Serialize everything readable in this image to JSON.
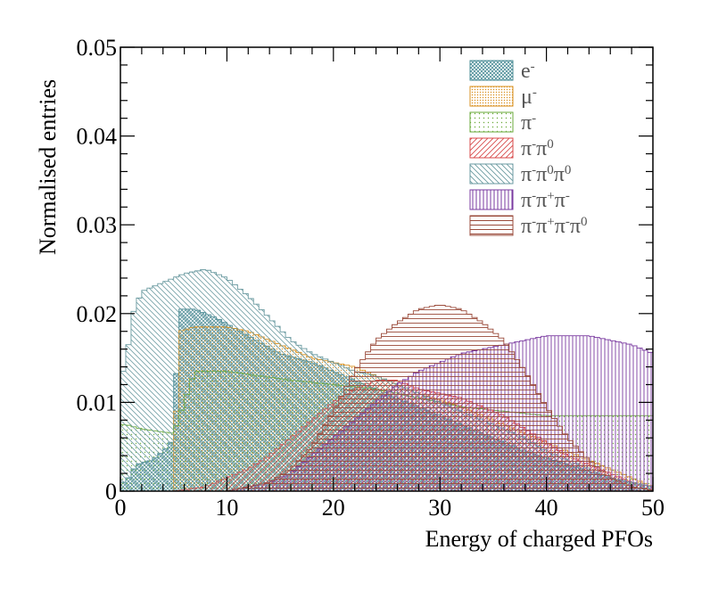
{
  "chart_data": {
    "type": "histogram",
    "title": "",
    "xlabel": "Energy of charged PFOs",
    "ylabel": "Normalised entries",
    "xlim": [
      0,
      50
    ],
    "ylim": [
      0,
      0.05
    ],
    "x_ticks": [
      "0",
      "10",
      "20",
      "30",
      "40",
      "50"
    ],
    "y_ticks": [
      "0",
      "0.01",
      "0.02",
      "0.03",
      "0.04",
      "0.05"
    ],
    "grid": false,
    "legend_position": "top-right",
    "bin_width": 0.5,
    "series": [
      {
        "name": "e-",
        "color": "#4a8c96",
        "pattern": "crosshatch-dense",
        "points": [
          [
            0.5,
            0.001
          ],
          [
            1.5,
            0.003
          ],
          [
            3,
            0.0035
          ],
          [
            4.5,
            0.005
          ],
          [
            5,
            0.006
          ],
          [
            5.5,
            0.0205
          ],
          [
            7,
            0.0205
          ],
          [
            9,
            0.0195
          ],
          [
            12,
            0.0175
          ],
          [
            15,
            0.0155
          ],
          [
            18,
            0.0145
          ],
          [
            22,
            0.0125
          ],
          [
            26,
            0.0105
          ],
          [
            30,
            0.0085
          ],
          [
            34,
            0.0065
          ],
          [
            38,
            0.0045
          ],
          [
            42,
            0.003
          ],
          [
            46,
            0.0015
          ],
          [
            50,
            0.0005
          ]
        ]
      },
      {
        "name": "μ-",
        "color": "#d9901f",
        "pattern": "dots",
        "points": [
          [
            0.5,
            0.0
          ],
          [
            5,
            0.0
          ],
          [
            5.5,
            0.018
          ],
          [
            7,
            0.0185
          ],
          [
            10,
            0.0185
          ],
          [
            12,
            0.018
          ],
          [
            15,
            0.0165
          ],
          [
            18,
            0.015
          ],
          [
            20,
            0.0145
          ],
          [
            22,
            0.014
          ],
          [
            25,
            0.0125
          ],
          [
            28,
            0.011
          ],
          [
            32,
            0.0095
          ],
          [
            36,
            0.0075
          ],
          [
            40,
            0.0055
          ],
          [
            44,
            0.0035
          ],
          [
            48,
            0.0015
          ],
          [
            50,
            0.0005
          ]
        ]
      },
      {
        "name": "π-",
        "color": "#6aaa3a",
        "pattern": "dots-sparse",
        "points": [
          [
            0.5,
            0.0075
          ],
          [
            2,
            0.007
          ],
          [
            5,
            0.0065
          ],
          [
            7,
            0.0135
          ],
          [
            10,
            0.0135
          ],
          [
            13,
            0.013
          ],
          [
            16,
            0.0125
          ],
          [
            20,
            0.012
          ],
          [
            24,
            0.0115
          ],
          [
            28,
            0.0105
          ],
          [
            32,
            0.0095
          ],
          [
            36,
            0.009
          ],
          [
            40,
            0.0085
          ],
          [
            44,
            0.0085
          ],
          [
            47,
            0.0085
          ],
          [
            50,
            0.0085
          ]
        ]
      },
      {
        "name": "π-π0",
        "color": "#d84a4a",
        "pattern": "diagonal-right",
        "points": [
          [
            0.5,
            0.0
          ],
          [
            5,
            0.0
          ],
          [
            8,
            0.0005
          ],
          [
            10,
            0.0015
          ],
          [
            12,
            0.0025
          ],
          [
            14,
            0.004
          ],
          [
            16,
            0.006
          ],
          [
            18,
            0.008
          ],
          [
            20,
            0.01
          ],
          [
            22,
            0.0115
          ],
          [
            24,
            0.0125
          ],
          [
            26,
            0.0125
          ],
          [
            28,
            0.0115
          ],
          [
            30,
            0.011
          ],
          [
            32,
            0.0105
          ],
          [
            34,
            0.0095
          ],
          [
            36,
            0.0085
          ],
          [
            38,
            0.007
          ],
          [
            40,
            0.0055
          ],
          [
            42,
            0.004
          ],
          [
            44,
            0.003
          ],
          [
            46,
            0.002
          ],
          [
            48,
            0.001
          ],
          [
            50,
            0.0005
          ]
        ]
      },
      {
        "name": "π-π0π0",
        "color": "#6a9aa0",
        "pattern": "diagonal-left",
        "points": [
          [
            0.5,
            0.0135
          ],
          [
            1,
            0.0195
          ],
          [
            2,
            0.0225
          ],
          [
            4,
            0.0235
          ],
          [
            6,
            0.0245
          ],
          [
            8,
            0.025
          ],
          [
            10,
            0.024
          ],
          [
            12,
            0.022
          ],
          [
            14,
            0.0195
          ],
          [
            16,
            0.017
          ],
          [
            18,
            0.0155
          ],
          [
            20,
            0.0145
          ],
          [
            22,
            0.0135
          ],
          [
            24,
            0.013
          ],
          [
            26,
            0.012
          ],
          [
            28,
            0.011
          ],
          [
            30,
            0.01
          ],
          [
            32,
            0.009
          ],
          [
            34,
            0.008
          ],
          [
            36,
            0.007
          ],
          [
            38,
            0.006
          ],
          [
            40,
            0.0045
          ],
          [
            42,
            0.0035
          ],
          [
            44,
            0.0025
          ],
          [
            46,
            0.0015
          ],
          [
            48,
            0.001
          ],
          [
            50,
            0.0005
          ]
        ]
      },
      {
        "name": "π-π+π-",
        "color": "#7a3aa0",
        "pattern": "vertical",
        "points": [
          [
            0.5,
            0.0
          ],
          [
            10,
            0.0
          ],
          [
            12,
            0.0005
          ],
          [
            14,
            0.001
          ],
          [
            16,
            0.002
          ],
          [
            18,
            0.004
          ],
          [
            20,
            0.006
          ],
          [
            22,
            0.008
          ],
          [
            24,
            0.01
          ],
          [
            26,
            0.012
          ],
          [
            28,
            0.0135
          ],
          [
            30,
            0.0145
          ],
          [
            32,
            0.0155
          ],
          [
            34,
            0.016
          ],
          [
            36,
            0.0165
          ],
          [
            38,
            0.017
          ],
          [
            40,
            0.0175
          ],
          [
            42,
            0.0175
          ],
          [
            44,
            0.0175
          ],
          [
            46,
            0.017
          ],
          [
            48,
            0.0165
          ],
          [
            50,
            0.0155
          ]
        ]
      },
      {
        "name": "π-π+π-π0",
        "color": "#9a4a3a",
        "pattern": "horizontal",
        "points": [
          [
            0.5,
            0.0
          ],
          [
            10,
            0.0
          ],
          [
            14,
            0.001
          ],
          [
            16,
            0.0025
          ],
          [
            18,
            0.005
          ],
          [
            20,
            0.009
          ],
          [
            22,
            0.0135
          ],
          [
            24,
            0.017
          ],
          [
            26,
            0.019
          ],
          [
            28,
            0.0205
          ],
          [
            30,
            0.021
          ],
          [
            32,
            0.0205
          ],
          [
            34,
            0.019
          ],
          [
            36,
            0.017
          ],
          [
            38,
            0.0135
          ],
          [
            40,
            0.0095
          ],
          [
            42,
            0.006
          ],
          [
            44,
            0.0035
          ],
          [
            46,
            0.0015
          ],
          [
            48,
            0.0005
          ],
          [
            50,
            0.0001
          ]
        ]
      }
    ],
    "legend_entries": [
      {
        "base": "e",
        "sup": [
          "-"
        ]
      },
      {
        "base": "μ",
        "sup": [
          "-"
        ]
      },
      {
        "base": "π",
        "sup": [
          "-"
        ]
      },
      {
        "base": "π",
        "sup": [
          "-"
        ],
        "more": [
          {
            "base": "π",
            "sup": "0"
          }
        ]
      },
      {
        "base": "π",
        "sup": [
          "-"
        ],
        "more": [
          {
            "base": "π",
            "sup": "0"
          },
          {
            "base": "π",
            "sup": "0"
          }
        ]
      },
      {
        "base": "π",
        "sup": [
          "-"
        ],
        "more": [
          {
            "base": "π",
            "sup": "+"
          },
          {
            "base": "π",
            "sup": "-"
          }
        ]
      },
      {
        "base": "π",
        "sup": [
          "-"
        ],
        "more": [
          {
            "base": "π",
            "sup": "+"
          },
          {
            "base": "π",
            "sup": "-"
          },
          {
            "base": "π",
            "sup": "0"
          }
        ]
      }
    ]
  }
}
